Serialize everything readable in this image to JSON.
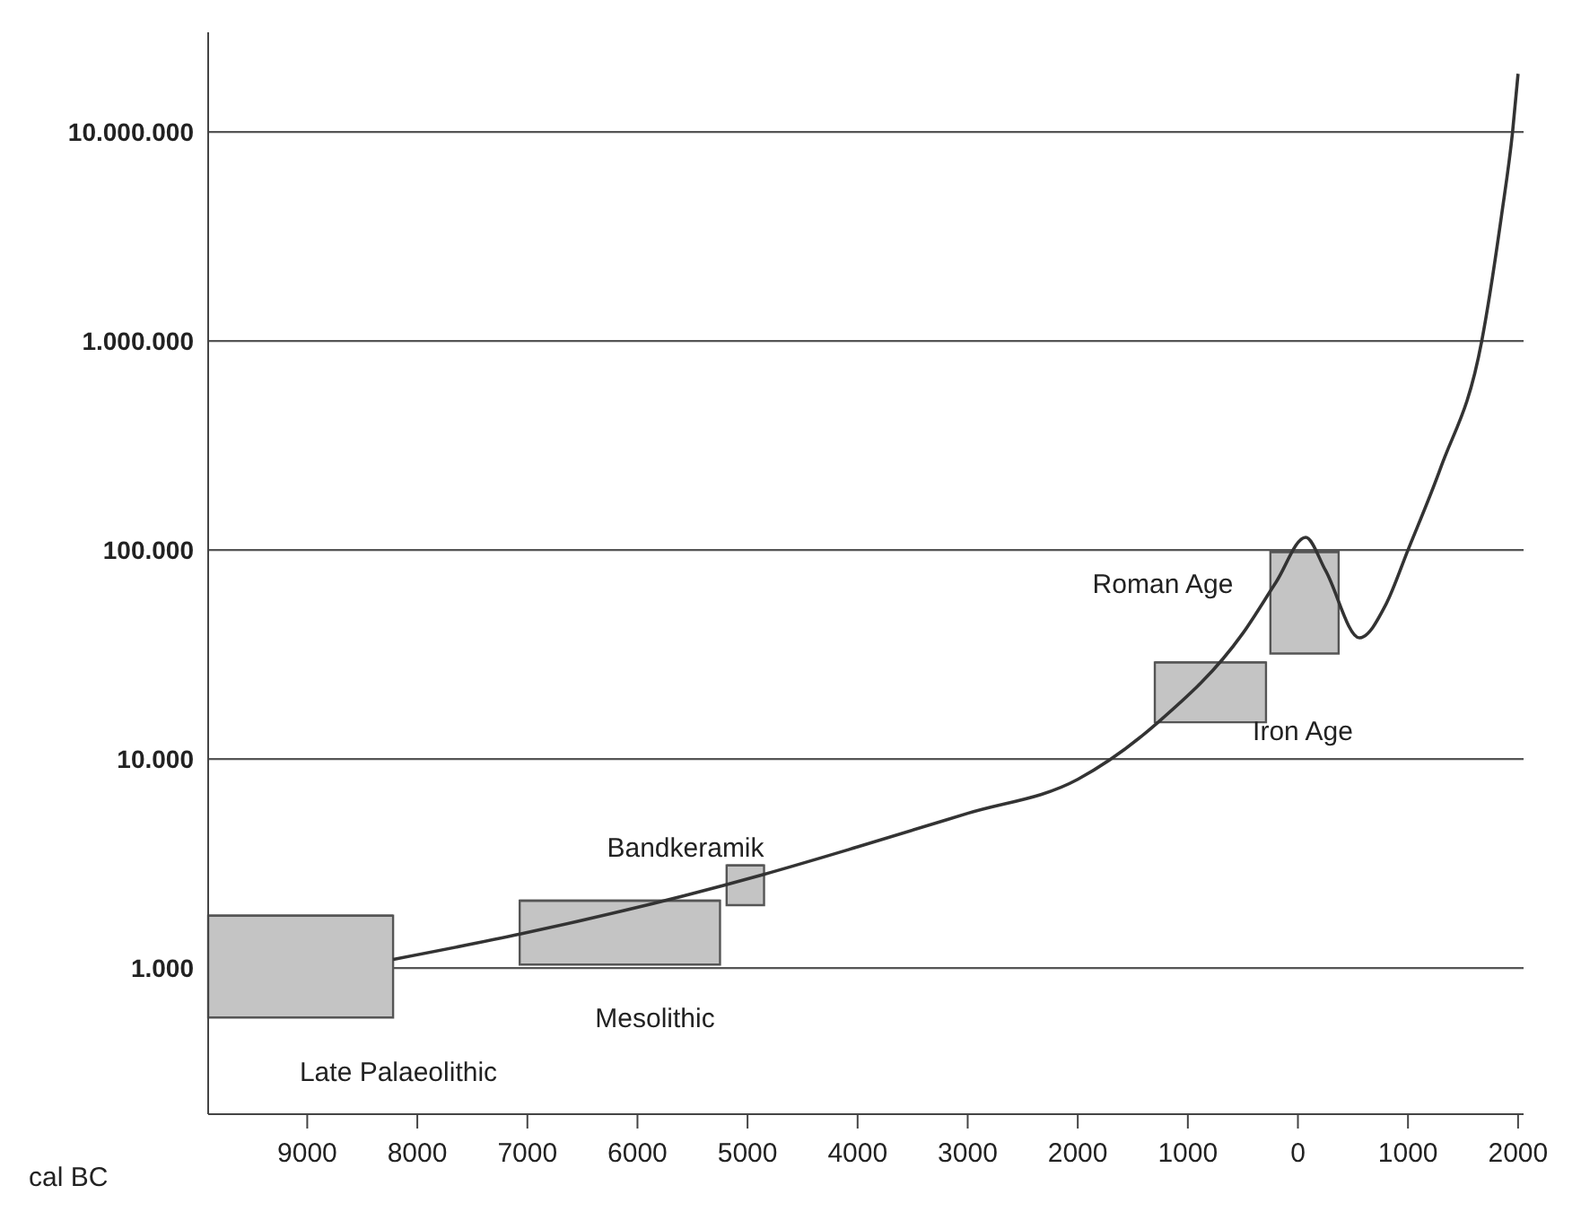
{
  "chart_data": {
    "type": "line",
    "xlabel": "cal BC",
    "log": "y",
    "grid": "y",
    "xlim": [
      -9900,
      2050
    ],
    "xticks": [
      {
        "value": -9000,
        "label": "9000"
      },
      {
        "value": -8000,
        "label": "8000"
      },
      {
        "value": -7000,
        "label": "7000"
      },
      {
        "value": -6000,
        "label": "6000"
      },
      {
        "value": -5000,
        "label": "5000"
      },
      {
        "value": -4000,
        "label": "4000"
      },
      {
        "value": -3000,
        "label": "3000"
      },
      {
        "value": -2000,
        "label": "2000"
      },
      {
        "value": -1000,
        "label": "1000"
      },
      0,
      1000,
      2000
    ],
    "ylim": [
      200,
      30000000
    ],
    "yticks": [
      {
        "value": 1000,
        "label": "1.000"
      },
      {
        "value": 10000,
        "label": "10.000"
      },
      {
        "value": 100000,
        "label": "100.000"
      },
      {
        "value": 1000000,
        "label": "1.000.000"
      },
      {
        "value": 10000000,
        "label": "10.000.000"
      }
    ],
    "series": [
      {
        "type": "bar",
        "color": "#c4c4c4",
        "x": [
          -9060,
          -6160,
          -5020,
          -795,
          60
        ],
        "base": [
          580,
          1040,
          2000,
          15000,
          32000
        ],
        "values": [
          1200,
          1060,
          1100,
          14000,
          66000
        ],
        "xerrors": [
          [
            -9900,
            -8220
          ],
          [
            -7070,
            -5250
          ],
          [
            -5190,
            -4850
          ],
          [
            -1300,
            -290
          ],
          [
            -250,
            370
          ]
        ]
      },
      {
        "color": "#333333",
        "marker": "none",
        "x": [
          -8220,
          -7050,
          -4860,
          -4000,
          -3000,
          -2000,
          -1270,
          -500,
          -200,
          70,
          250,
          560,
          800,
          1000,
          1300,
          1670,
          1850,
          1950,
          2000
        ],
        "values": [
          1100,
          1460,
          2800,
          3800,
          5500,
          8000,
          15000,
          40000,
          70000,
          115000,
          80000,
          38000,
          55000,
          100000,
          250000,
          1000000,
          4000000,
          10000000,
          19000000
        ]
      }
    ],
    "annotations": [
      "Late Palaeolithic",
      "Mesolithic",
      "Bandkeramik",
      "Iron Age",
      "Roman Age"
    ]
  }
}
